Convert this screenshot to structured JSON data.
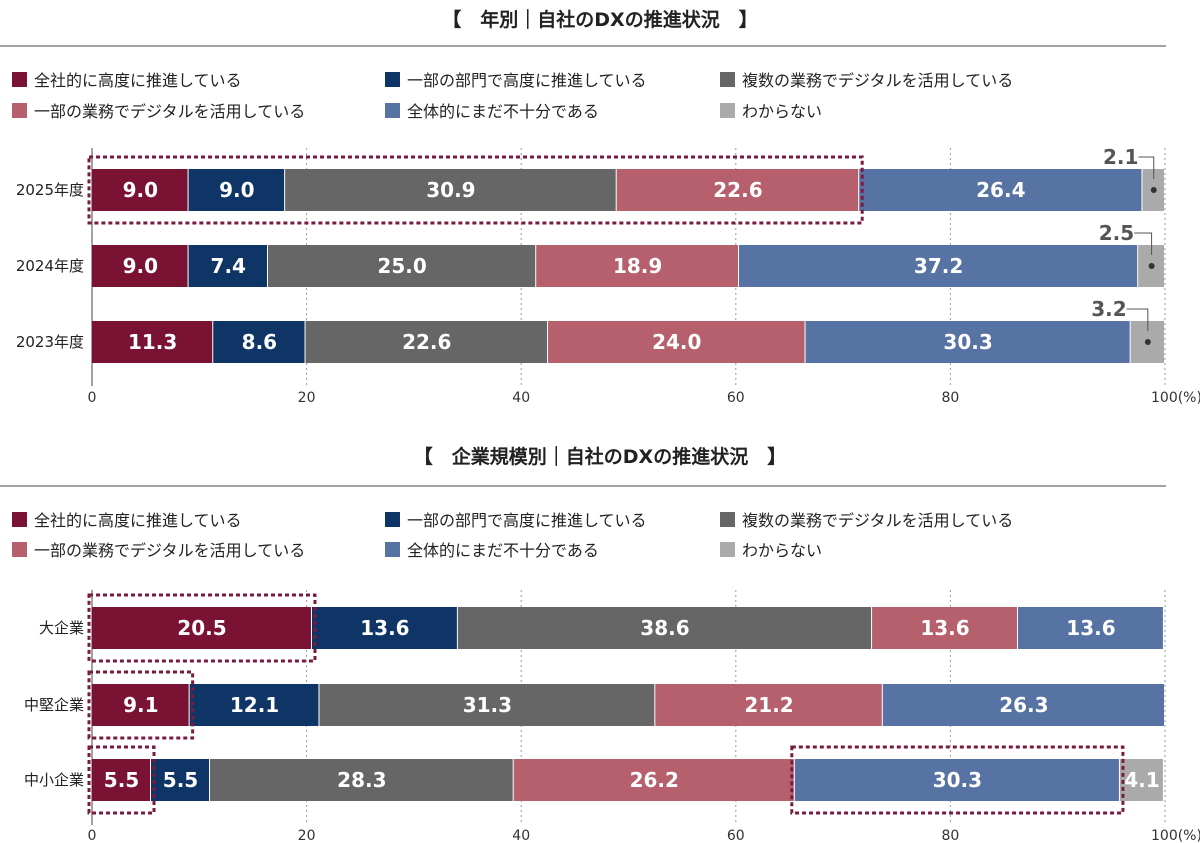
{
  "colors": {
    "s1": "#7a1234",
    "s2": "#0f3466",
    "s3": "#666666",
    "s4": "#b5606c",
    "s5": "#5773a3",
    "s6": "#aaaaaa",
    "highlight": "#7a1a40"
  },
  "chart_data": [
    {
      "type": "bar",
      "orientation": "horizontal-stacked",
      "title": "【　年別｜自社のDXの推進状況　】",
      "categories": [
        "2025年度",
        "2024年度",
        "2023年度"
      ],
      "series": [
        {
          "name": "全社的に高度に推進している",
          "values": [
            9.0,
            9.0,
            11.3
          ]
        },
        {
          "name": "一部の部門で高度に推進している",
          "values": [
            9.0,
            7.4,
            8.6
          ]
        },
        {
          "name": "複数の業務でデジタルを活用している",
          "values": [
            30.9,
            25.0,
            22.6
          ]
        },
        {
          "name": "一部の業務でデジタルを活用している",
          "values": [
            22.6,
            18.9,
            24.0
          ]
        },
        {
          "name": "全体的にまだ不十分である",
          "values": [
            26.4,
            37.2,
            30.3
          ]
        },
        {
          "name": "わからない",
          "values": [
            2.1,
            2.5,
            3.2
          ]
        }
      ],
      "value_labels": [
        [
          "9.0",
          "9.0",
          "30.9",
          "22.6",
          "26.4",
          "2.1"
        ],
        [
          "9.0",
          "7.4",
          "25.0",
          "18.9",
          "37.2",
          "2.5"
        ],
        [
          "11.3",
          "8.6",
          "22.6",
          "24.0",
          "30.3",
          "3.2"
        ]
      ],
      "xlim": [
        0,
        100
      ],
      "ticks": [
        "0",
        "20",
        "40",
        "60",
        "80",
        "100(%)"
      ],
      "grid": "dotted vertical",
      "legend": "top",
      "highlights": [
        {
          "category_index": 0,
          "from_series": 0,
          "to_series": 3
        }
      ]
    },
    {
      "type": "bar",
      "orientation": "horizontal-stacked",
      "title": "【　企業規模別｜自社のDXの推進状況　】",
      "categories": [
        "大企業",
        "中堅企業",
        "中小企業"
      ],
      "series": [
        {
          "name": "全社的に高度に推進している",
          "values": [
            20.5,
            9.1,
            5.5
          ]
        },
        {
          "name": "一部の部門で高度に推進している",
          "values": [
            13.6,
            12.1,
            5.5
          ]
        },
        {
          "name": "複数の業務でデジタルを活用している",
          "values": [
            38.6,
            31.3,
            28.3
          ]
        },
        {
          "name": "一部の業務でデジタルを活用している",
          "values": [
            13.6,
            21.2,
            26.2
          ]
        },
        {
          "name": "全体的にまだ不十分である",
          "values": [
            13.6,
            26.3,
            30.3
          ]
        },
        {
          "name": "わからない",
          "values": [
            0.0,
            0.0,
            4.1
          ]
        }
      ],
      "value_labels": [
        [
          "20.5",
          "13.6",
          "38.6",
          "13.6",
          "13.6",
          ""
        ],
        [
          "9.1",
          "12.1",
          "31.3",
          "21.2",
          "26.3",
          ""
        ],
        [
          "5.5",
          "5.5",
          "28.3",
          "26.2",
          "30.3",
          "4.1"
        ]
      ],
      "xlim": [
        0,
        100
      ],
      "ticks": [
        "0",
        "20",
        "40",
        "60",
        "80",
        "100(%)"
      ],
      "grid": "dotted vertical",
      "legend": "top",
      "highlights": [
        {
          "category_index": 0,
          "from_series": 0,
          "to_series": 0
        },
        {
          "category_index": 1,
          "from_series": 0,
          "to_series": 0
        },
        {
          "category_index": 2,
          "from_series": 0,
          "to_series": 0
        },
        {
          "category_index": 2,
          "from_series": 4,
          "to_series": 4
        }
      ]
    }
  ]
}
